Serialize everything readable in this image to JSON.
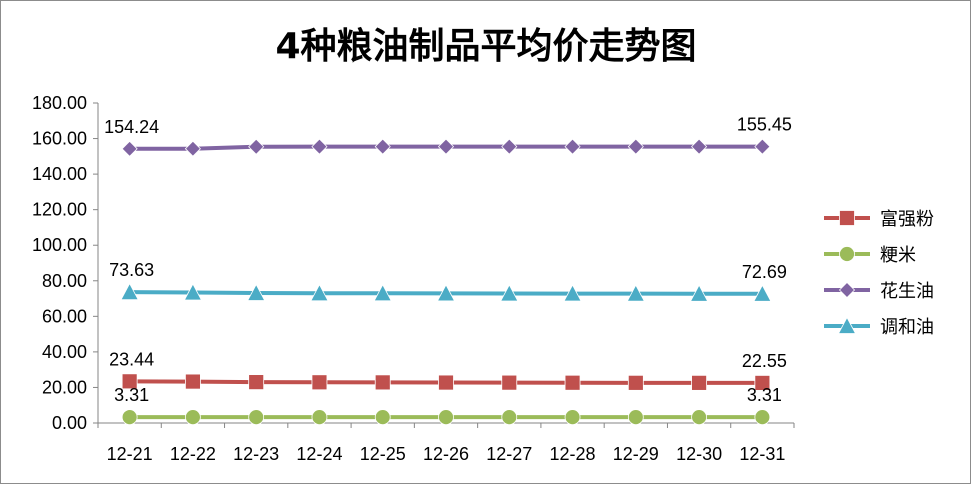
{
  "chart_data": {
    "type": "line",
    "title": "4种粮油制品平均价走势图",
    "categories": [
      "12-21",
      "12-22",
      "12-23",
      "12-24",
      "12-25",
      "12-26",
      "12-27",
      "12-28",
      "12-29",
      "12-30",
      "12-31"
    ],
    "ylim": [
      0,
      180
    ],
    "ytick_step": 20,
    "ytick_labels": [
      "0.00",
      "20.00",
      "40.00",
      "60.00",
      "80.00",
      "100.00",
      "120.00",
      "140.00",
      "160.00",
      "180.00"
    ],
    "grid": false,
    "legend_position": "right",
    "series": [
      {
        "name": "富强粉",
        "color": "#c0504d",
        "marker": "square",
        "values": [
          23.44,
          23.3,
          23.0,
          22.9,
          22.85,
          22.75,
          22.7,
          22.65,
          22.6,
          22.58,
          22.55
        ],
        "labels": {
          "0": "23.44",
          "10": "22.55"
        }
      },
      {
        "name": "粳米",
        "color": "#9bbb59",
        "marker": "circle",
        "values": [
          3.31,
          3.31,
          3.31,
          3.31,
          3.31,
          3.31,
          3.31,
          3.31,
          3.31,
          3.31,
          3.31
        ],
        "labels": {
          "0": "3.31",
          "10": "3.31"
        }
      },
      {
        "name": "花生油",
        "color": "#8064a2",
        "marker": "diamond",
        "values": [
          154.24,
          154.3,
          155.4,
          155.45,
          155.45,
          155.45,
          155.45,
          155.45,
          155.45,
          155.45,
          155.45
        ],
        "labels": {
          "0": "154.24",
          "10": "155.45"
        }
      },
      {
        "name": "调和油",
        "color": "#4bacc6",
        "marker": "triangle",
        "values": [
          73.63,
          73.4,
          73.1,
          73.0,
          72.95,
          72.9,
          72.85,
          72.8,
          72.75,
          72.72,
          72.69
        ],
        "labels": {
          "0": "73.63",
          "10": "72.69"
        }
      }
    ]
  }
}
